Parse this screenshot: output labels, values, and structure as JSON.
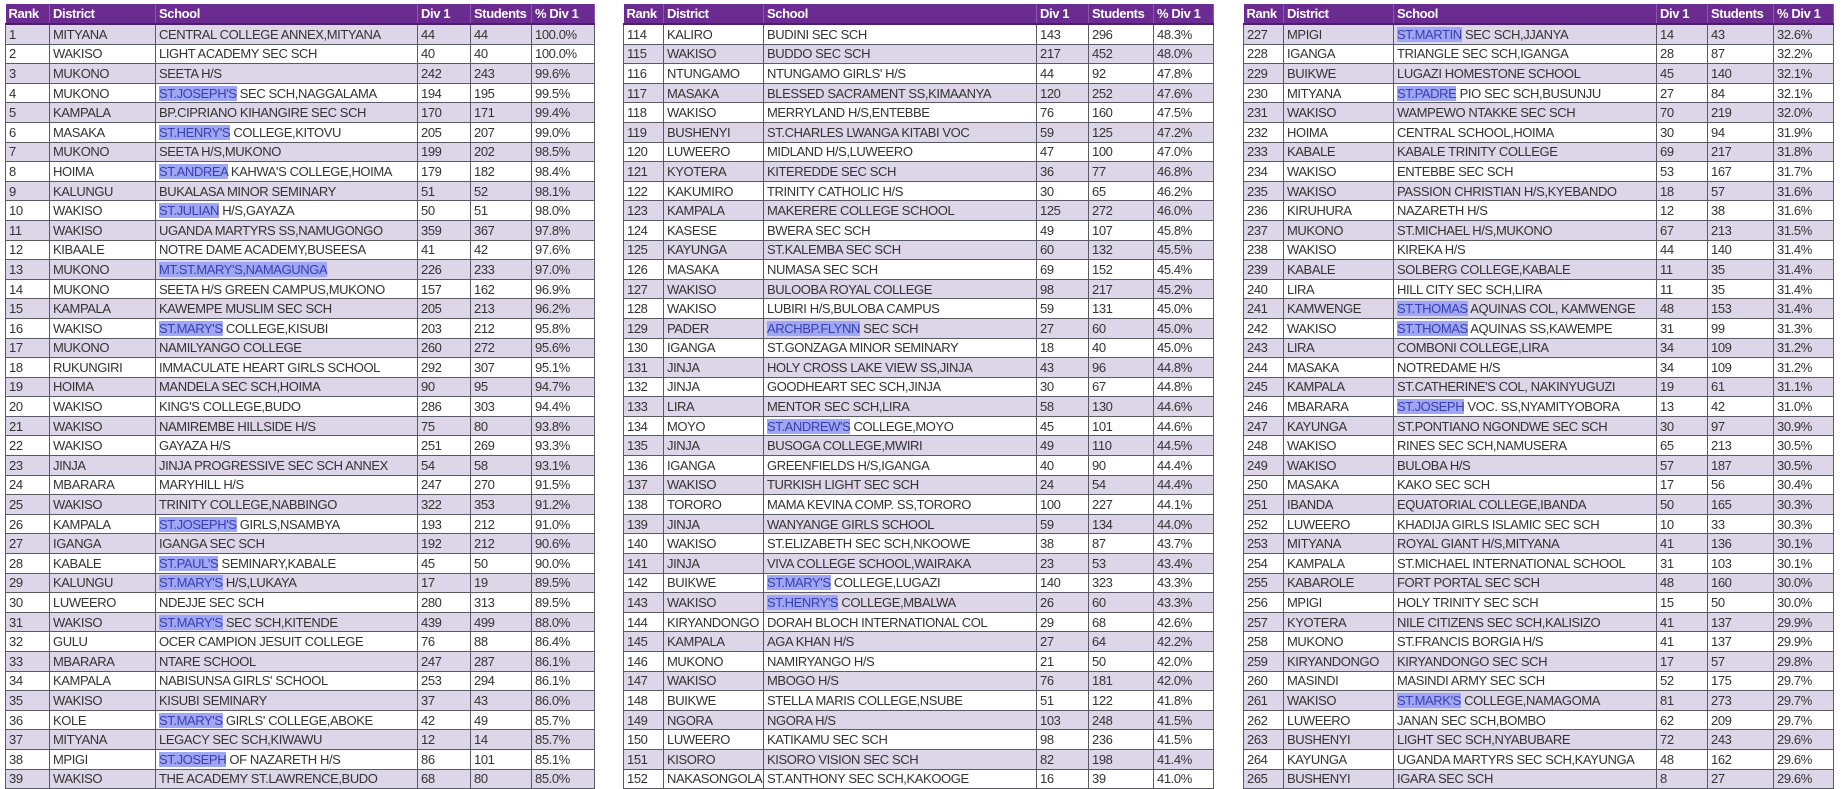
{
  "colors": {
    "header": "#6b2c91",
    "shaded_row": "#ddd5e8",
    "highlight": "#9fa6f4"
  },
  "tables": [
    {
      "columns": [
        "Rank",
        "District",
        "School",
        "Div 1",
        "Students",
        "% Div 1"
      ],
      "rows": [
        [
          "1",
          "MITYANA",
          "CENTRAL COLLEGE ANNEX,MITYANA",
          "44",
          "44",
          "100.0%",
          ""
        ],
        [
          "2",
          "WAKISO",
          "LIGHT ACADEMY SEC SCH",
          "40",
          "40",
          "100.0%",
          ""
        ],
        [
          "3",
          "MUKONO",
          "SEETA H/S",
          "242",
          "243",
          "99.6%",
          ""
        ],
        [
          "4",
          "MUKONO",
          "ST.JOSEPH'S SEC SCH,NAGGALAMA",
          "194",
          "195",
          "99.5%",
          "ST.JOSEPH'S"
        ],
        [
          "5",
          "KAMPALA",
          "BP.CIPRIANO KIHANGIRE SEC SCH",
          "170",
          "171",
          "99.4%",
          ""
        ],
        [
          "6",
          "MASAKA",
          "ST.HENRY'S COLLEGE,KITOVU",
          "205",
          "207",
          "99.0%",
          "ST.HENRY'S"
        ],
        [
          "7",
          "MUKONO",
          "SEETA H/S,MUKONO",
          "199",
          "202",
          "98.5%",
          ""
        ],
        [
          "8",
          "HOIMA",
          "ST.ANDREA KAHWA'S COLLEGE,HOIMA",
          "179",
          "182",
          "98.4%",
          "ST.ANDREA"
        ],
        [
          "9",
          "KALUNGU",
          "BUKALASA MINOR SEMINARY",
          "51",
          "52",
          "98.1%",
          ""
        ],
        [
          "10",
          "WAKISO",
          "ST.JULIAN H/S,GAYAZA",
          "50",
          "51",
          "98.0%",
          "ST.JULIAN"
        ],
        [
          "11",
          "WAKISO",
          "UGANDA MARTYRS SS,NAMUGONGO",
          "359",
          "367",
          "97.8%",
          ""
        ],
        [
          "12",
          "KIBAALE",
          "NOTRE DAME ACADEMY,BUSEESA",
          "41",
          "42",
          "97.6%",
          ""
        ],
        [
          "13",
          "MUKONO",
          "MT.ST.MARY'S,NAMAGUNGA",
          "226",
          "233",
          "97.0%",
          "MT.ST.MARY'S,NAMAGUNGA"
        ],
        [
          "14",
          "MUKONO",
          "SEETA H/S GREEN CAMPUS,MUKONO",
          "157",
          "162",
          "96.9%",
          ""
        ],
        [
          "15",
          "KAMPALA",
          "KAWEMPE MUSLIM SEC SCH",
          "205",
          "213",
          "96.2%",
          ""
        ],
        [
          "16",
          "WAKISO",
          "ST.MARY'S COLLEGE,KISUBI",
          "203",
          "212",
          "95.8%",
          "ST.MARY'S"
        ],
        [
          "17",
          "MUKONO",
          "NAMILYANGO COLLEGE",
          "260",
          "272",
          "95.6%",
          ""
        ],
        [
          "18",
          "RUKUNGIRI",
          "IMMACULATE HEART GIRLS SCHOOL",
          "292",
          "307",
          "95.1%",
          ""
        ],
        [
          "19",
          "HOIMA",
          "MANDELA SEC SCH,HOIMA",
          "90",
          "95",
          "94.7%",
          ""
        ],
        [
          "20",
          "WAKISO",
          "KING'S COLLEGE,BUDO",
          "286",
          "303",
          "94.4%",
          ""
        ],
        [
          "21",
          "WAKISO",
          "NAMIREMBE HILLSIDE H/S",
          "75",
          "80",
          "93.8%",
          ""
        ],
        [
          "22",
          "WAKISO",
          "GAYAZA H/S",
          "251",
          "269",
          "93.3%",
          ""
        ],
        [
          "23",
          "JINJA",
          "JINJA PROGRESSIVE SEC SCH ANNEX",
          "54",
          "58",
          "93.1%",
          ""
        ],
        [
          "24",
          "MBARARA",
          "MARYHILL H/S",
          "247",
          "270",
          "91.5%",
          ""
        ],
        [
          "25",
          "WAKISO",
          "TRINITY COLLEGE,NABBINGO",
          "322",
          "353",
          "91.2%",
          ""
        ],
        [
          "26",
          "KAMPALA",
          "ST.JOSEPH'S GIRLS,NSAMBYA",
          "193",
          "212",
          "91.0%",
          "ST.JOSEPH'S"
        ],
        [
          "27",
          "IGANGA",
          "IGANGA SEC SCH",
          "192",
          "212",
          "90.6%",
          ""
        ],
        [
          "28",
          "KABALE",
          "ST.PAUL'S SEMINARY,KABALE",
          "45",
          "50",
          "90.0%",
          "ST.PAUL'S"
        ],
        [
          "29",
          "KALUNGU",
          "ST.MARY'S H/S,LUKAYA",
          "17",
          "19",
          "89.5%",
          "ST.MARY'S"
        ],
        [
          "30",
          "LUWEERO",
          "NDEJJE SEC SCH",
          "280",
          "313",
          "89.5%",
          ""
        ],
        [
          "31",
          "WAKISO",
          "ST.MARY'S SEC SCH,KITENDE",
          "439",
          "499",
          "88.0%",
          "ST.MARY'S"
        ],
        [
          "32",
          "GULU",
          "OCER CAMPION JESUIT COLLEGE",
          "76",
          "88",
          "86.4%",
          ""
        ],
        [
          "33",
          "MBARARA",
          "NTARE SCHOOL",
          "247",
          "287",
          "86.1%",
          ""
        ],
        [
          "34",
          "KAMPALA",
          "NABISUNSA GIRLS' SCHOOL",
          "253",
          "294",
          "86.1%",
          ""
        ],
        [
          "35",
          "WAKISO",
          "KISUBI SEMINARY",
          "37",
          "43",
          "86.0%",
          ""
        ],
        [
          "36",
          "KOLE",
          "ST.MARY'S GIRLS' COLLEGE,ABOKE",
          "42",
          "49",
          "85.7%",
          "ST.MARY'S"
        ],
        [
          "37",
          "MITYANA",
          "LEGACY SEC SCH,KIWAWU",
          "12",
          "14",
          "85.7%",
          ""
        ],
        [
          "38",
          "MPIGI",
          "ST.JOSEPH OF NAZARETH H/S",
          "86",
          "101",
          "85.1%",
          "ST.JOSEPH"
        ],
        [
          "39",
          "WAKISO",
          "THE ACADEMY ST.LAWRENCE,BUDO",
          "68",
          "80",
          "85.0%",
          ""
        ]
      ]
    },
    {
      "columns": [
        "Rank",
        "District",
        "School",
        "Div 1",
        "Students",
        "% Div 1"
      ],
      "rows": [
        [
          "114",
          "KALIRO",
          "BUDINI SEC SCH",
          "143",
          "296",
          "48.3%",
          ""
        ],
        [
          "115",
          "WAKISO",
          "BUDDO SEC SCH",
          "217",
          "452",
          "48.0%",
          ""
        ],
        [
          "116",
          "NTUNGAMO",
          "NTUNGAMO GIRLS' H/S",
          "44",
          "92",
          "47.8%",
          ""
        ],
        [
          "117",
          "MASAKA",
          "BLESSED SACRAMENT SS,KIMAANYA",
          "120",
          "252",
          "47.6%",
          ""
        ],
        [
          "118",
          "WAKISO",
          "MERRYLAND H/S,ENTEBBE",
          "76",
          "160",
          "47.5%",
          ""
        ],
        [
          "119",
          "BUSHENYI",
          "ST.CHARLES LWANGA KITABI VOC",
          "59",
          "125",
          "47.2%",
          ""
        ],
        [
          "120",
          "LUWEERO",
          "MIDLAND H/S,LUWEERO",
          "47",
          "100",
          "47.0%",
          ""
        ],
        [
          "121",
          "KYOTERA",
          "KITEREDDE SEC SCH",
          "36",
          "77",
          "46.8%",
          ""
        ],
        [
          "122",
          "KAKUMIRO",
          "TRINITY CATHOLIC H/S",
          "30",
          "65",
          "46.2%",
          ""
        ],
        [
          "123",
          "KAMPALA",
          "MAKERERE COLLEGE SCHOOL",
          "125",
          "272",
          "46.0%",
          ""
        ],
        [
          "124",
          "KASESE",
          "BWERA SEC SCH",
          "49",
          "107",
          "45.8%",
          ""
        ],
        [
          "125",
          "KAYUNGA",
          "ST.KALEMBA SEC SCH",
          "60",
          "132",
          "45.5%",
          ""
        ],
        [
          "126",
          "MASAKA",
          "NUMASA SEC SCH",
          "69",
          "152",
          "45.4%",
          ""
        ],
        [
          "127",
          "WAKISO",
          "BULOOBA ROYAL COLLEGE",
          "98",
          "217",
          "45.2%",
          ""
        ],
        [
          "128",
          "WAKISO",
          "LUBIRI H/S,BULOBA CAMPUS",
          "59",
          "131",
          "45.0%",
          ""
        ],
        [
          "129",
          "PADER",
          "ARCHBP.FLYNN SEC SCH",
          "27",
          "60",
          "45.0%",
          "ARCHBP.FLYNN"
        ],
        [
          "130",
          "IGANGA",
          "ST.GONZAGA MINOR SEMINARY",
          "18",
          "40",
          "45.0%",
          ""
        ],
        [
          "131",
          "JINJA",
          "HOLY CROSS LAKE VIEW SS,JINJA",
          "43",
          "96",
          "44.8%",
          ""
        ],
        [
          "132",
          "JINJA",
          "GOODHEART SEC SCH,JINJA",
          "30",
          "67",
          "44.8%",
          ""
        ],
        [
          "133",
          "LIRA",
          "MENTOR SEC SCH,LIRA",
          "58",
          "130",
          "44.6%",
          ""
        ],
        [
          "134",
          "MOYO",
          "ST.ANDREW'S COLLEGE,MOYO",
          "45",
          "101",
          "44.6%",
          "ST.ANDREW'S"
        ],
        [
          "135",
          "JINJA",
          "BUSOGA COLLEGE,MWIRI",
          "49",
          "110",
          "44.5%",
          ""
        ],
        [
          "136",
          "IGANGA",
          "GREENFIELDS H/S,IGANGA",
          "40",
          "90",
          "44.4%",
          ""
        ],
        [
          "137",
          "WAKISO",
          "TURKISH LIGHT SEC SCH",
          "24",
          "54",
          "44.4%",
          ""
        ],
        [
          "138",
          "TORORO",
          "MAMA KEVINA COMP. SS,TORORO",
          "100",
          "227",
          "44.1%",
          ""
        ],
        [
          "139",
          "JINJA",
          "WANYANGE GIRLS SCHOOL",
          "59",
          "134",
          "44.0%",
          ""
        ],
        [
          "140",
          "WAKISO",
          "ST.ELIZABETH SEC SCH,NKOOWE",
          "38",
          "87",
          "43.7%",
          ""
        ],
        [
          "141",
          "JINJA",
          "VIVA COLLEGE SCHOOL,WAIRAKA",
          "23",
          "53",
          "43.4%",
          ""
        ],
        [
          "142",
          "BUIKWE",
          "ST.MARY'S COLLEGE,LUGAZI",
          "140",
          "323",
          "43.3%",
          "ST.MARY'S"
        ],
        [
          "143",
          "WAKISO",
          "ST.HENRY'S COLLEGE,MBALWA",
          "26",
          "60",
          "43.3%",
          "ST.HENRY'S"
        ],
        [
          "144",
          "KIRYANDONGO",
          "DORAH BLOCH INTERNATIONAL COL",
          "29",
          "68",
          "42.6%",
          ""
        ],
        [
          "145",
          "KAMPALA",
          "AGA KHAN H/S",
          "27",
          "64",
          "42.2%",
          ""
        ],
        [
          "146",
          "MUKONO",
          "NAMIRYANGO H/S",
          "21",
          "50",
          "42.0%",
          ""
        ],
        [
          "147",
          "WAKISO",
          "MBOGO H/S",
          "76",
          "181",
          "42.0%",
          ""
        ],
        [
          "148",
          "BUIKWE",
          "STELLA MARIS COLLEGE,NSUBE",
          "51",
          "122",
          "41.8%",
          ""
        ],
        [
          "149",
          "NGORA",
          "NGORA H/S",
          "103",
          "248",
          "41.5%",
          ""
        ],
        [
          "150",
          "LUWEERO",
          "KATIKAMU SEC SCH",
          "98",
          "236",
          "41.5%",
          ""
        ],
        [
          "151",
          "KISORO",
          "KISORO VISION SEC SCH",
          "82",
          "198",
          "41.4%",
          ""
        ],
        [
          "152",
          "NAKASONGOLA",
          "ST.ANTHONY SEC SCH,KAKOOGE",
          "16",
          "39",
          "41.0%",
          ""
        ]
      ]
    },
    {
      "columns": [
        "Rank",
        "District",
        "School",
        "Div 1",
        "Students",
        "% Div 1"
      ],
      "rows": [
        [
          "227",
          "MPIGI",
          "ST.MARTIN SEC SCH,JJANYA",
          "14",
          "43",
          "32.6%",
          "ST.MARTIN"
        ],
        [
          "228",
          "IGANGA",
          "TRIANGLE SEC SCH,IGANGA",
          "28",
          "87",
          "32.2%",
          ""
        ],
        [
          "229",
          "BUIKWE",
          "LUGAZI HOMESTONE SCHOOL",
          "45",
          "140",
          "32.1%",
          ""
        ],
        [
          "230",
          "MITYANA",
          "ST.PADRE PIO SEC SCH,BUSUNJU",
          "27",
          "84",
          "32.1%",
          "ST.PADRE"
        ],
        [
          "231",
          "WAKISO",
          "WAMPEWO NTAKKE SEC SCH",
          "70",
          "219",
          "32.0%",
          ""
        ],
        [
          "232",
          "HOIMA",
          "CENTRAL SCHOOL,HOIMA",
          "30",
          "94",
          "31.9%",
          ""
        ],
        [
          "233",
          "KABALE",
          "KABALE TRINITY COLLEGE",
          "69",
          "217",
          "31.8%",
          ""
        ],
        [
          "234",
          "WAKISO",
          "ENTEBBE  SEC SCH",
          "53",
          "167",
          "31.7%",
          ""
        ],
        [
          "235",
          "WAKISO",
          "PASSION CHRISTIAN H/S,KYEBANDO",
          "18",
          "57",
          "31.6%",
          ""
        ],
        [
          "236",
          "KIRUHURA",
          "NAZARETH H/S",
          "12",
          "38",
          "31.6%",
          ""
        ],
        [
          "237",
          "MUKONO",
          "ST.MICHAEL H/S,MUKONO",
          "67",
          "213",
          "31.5%",
          ""
        ],
        [
          "238",
          "WAKISO",
          "KIREKA H/S",
          "44",
          "140",
          "31.4%",
          ""
        ],
        [
          "239",
          "KABALE",
          "SOLBERG COLLEGE,KABALE",
          "11",
          "35",
          "31.4%",
          ""
        ],
        [
          "240",
          "LIRA",
          "HILL CITY SEC SCH,LIRA",
          "11",
          "35",
          "31.4%",
          ""
        ],
        [
          "241",
          "KAMWENGE",
          "ST.THOMAS AQUINAS COL, KAMWENGE",
          "48",
          "153",
          "31.4%",
          "ST.THOMAS"
        ],
        [
          "242",
          "WAKISO",
          "ST.THOMAS AQUINAS SS,KAWEMPE",
          "31",
          "99",
          "31.3%",
          "ST.THOMAS"
        ],
        [
          "243",
          "LIRA",
          "COMBONI COLLEGE,LIRA",
          "34",
          "109",
          "31.2%",
          ""
        ],
        [
          "244",
          "MASAKA",
          "NOTREDAME H/S",
          "34",
          "109",
          "31.2%",
          ""
        ],
        [
          "245",
          "KAMPALA",
          "ST.CATHERINE'S COL, NAKINYUGUZI",
          "19",
          "61",
          "31.1%",
          ""
        ],
        [
          "246",
          "MBARARA",
          "ST.JOSEPH VOC. SS,NYAMITYOBORA",
          "13",
          "42",
          "31.0%",
          "ST.JOSEPH"
        ],
        [
          "247",
          "KAYUNGA",
          "ST.PONTIANO NGONDWE SEC SCH",
          "30",
          "97",
          "30.9%",
          ""
        ],
        [
          "248",
          "WAKISO",
          "RINES SEC SCH,NAMUSERA",
          "65",
          "213",
          "30.5%",
          ""
        ],
        [
          "249",
          "WAKISO",
          "BULOBA H/S",
          "57",
          "187",
          "30.5%",
          ""
        ],
        [
          "250",
          "MASAKA",
          "KAKO SEC SCH",
          "17",
          "56",
          "30.4%",
          ""
        ],
        [
          "251",
          "IBANDA",
          "EQUATORIAL COLLEGE,IBANDA",
          "50",
          "165",
          "30.3%",
          ""
        ],
        [
          "252",
          "LUWEERO",
          "KHADIJA GIRLS ISLAMIC SEC SCH",
          "10",
          "33",
          "30.3%",
          ""
        ],
        [
          "253",
          "MITYANA",
          "ROYAL GIANT H/S,MITYANA",
          "41",
          "136",
          "30.1%",
          ""
        ],
        [
          "254",
          "KAMPALA",
          "ST.MICHAEL INTERNATIONAL SCHOOL",
          "31",
          "103",
          "30.1%",
          ""
        ],
        [
          "255",
          "KABAROLE",
          "FORT PORTAL SEC SCH",
          "48",
          "160",
          "30.0%",
          ""
        ],
        [
          "256",
          "MPIGI",
          "HOLY TRINITY SEC SCH",
          "15",
          "50",
          "30.0%",
          ""
        ],
        [
          "257",
          "KYOTERA",
          "NILE CITIZENS SEC SCH,KALISIZO",
          "41",
          "137",
          "29.9%",
          ""
        ],
        [
          "258",
          "MUKONO",
          "ST.FRANCIS BORGIA H/S",
          "41",
          "137",
          "29.9%",
          ""
        ],
        [
          "259",
          "KIRYANDONGO",
          "KIRYANDONGO SEC SCH",
          "17",
          "57",
          "29.8%",
          ""
        ],
        [
          "260",
          "MASINDI",
          "MASINDI ARMY SEC SCH",
          "52",
          "175",
          "29.7%",
          ""
        ],
        [
          "261",
          "WAKISO",
          "ST.MARK'S COLLEGE,NAMAGOMA",
          "81",
          "273",
          "29.7%",
          "ST.MARK'S"
        ],
        [
          "262",
          "LUWEERO",
          "JANAN SEC SCH,BOMBO",
          "62",
          "209",
          "29.7%",
          ""
        ],
        [
          "263",
          "BUSHENYI",
          "LIGHT SEC SCH,NYABUBARE",
          "72",
          "243",
          "29.6%",
          ""
        ],
        [
          "264",
          "KAYUNGA",
          "UGANDA MARTYRS SEC SCH,KAYUNGA",
          "48",
          "162",
          "29.6%",
          ""
        ],
        [
          "265",
          "BUSHENYI",
          "IGARA SEC SCH",
          "8",
          "27",
          "29.6%",
          ""
        ]
      ]
    }
  ]
}
